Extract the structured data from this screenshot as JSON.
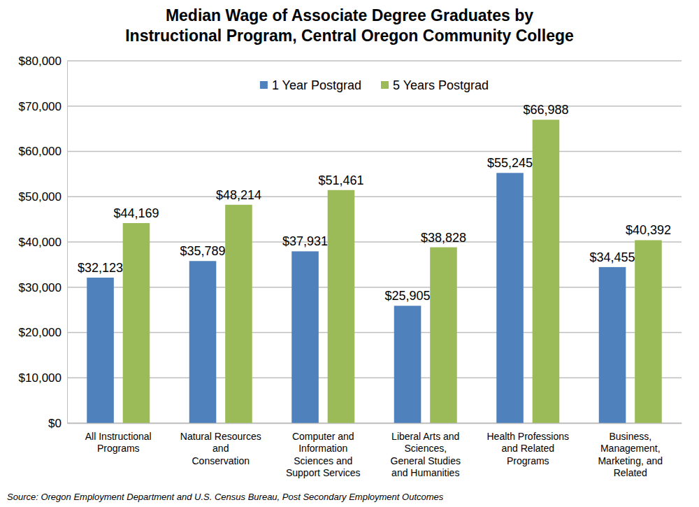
{
  "chart_data": {
    "type": "bar",
    "title": "Median Wage of Associate Degree Graduates by\nInstructional Program, Central Oregon Community College",
    "source": "Source: Oregon Employment Department and U.S. Census Bureau, Post Secondary Employment Outcomes",
    "categories": [
      "All Instructional\nPrograms",
      "Natural Resources\nand\nConservation",
      "Computer and\nInformation\nSciences and\nSupport Services",
      "Liberal Arts and\nSciences,\nGeneral Studies\nand Humanities",
      "Health Professions\nand Related\nPrograms",
      "Business,\nManagement,\nMarketing, and\nRelated"
    ],
    "series": [
      {
        "name": "1 Year Postgrad",
        "color": "#4f81bd",
        "values": [
          32123,
          35789,
          37931,
          25905,
          55245,
          34455
        ],
        "value_labels": [
          "$32,123",
          "$35,789",
          "$37,931",
          "$25,905",
          "$55,245",
          "$34,455"
        ]
      },
      {
        "name": "5 Years Postgrad",
        "color": "#9bbb59",
        "values": [
          44169,
          48214,
          51461,
          38828,
          66988,
          40392
        ],
        "value_labels": [
          "$44,169",
          "$48,214",
          "$51,461",
          "$38,828",
          "$66,988",
          "$40,392"
        ]
      }
    ],
    "ylim": [
      0,
      80000
    ],
    "yticks": [
      {
        "value": 0,
        "label": "$0"
      },
      {
        "value": 10000,
        "label": "$10,000"
      },
      {
        "value": 20000,
        "label": "$20,000"
      },
      {
        "value": 30000,
        "label": "$30,000"
      },
      {
        "value": 40000,
        "label": "$40,000"
      },
      {
        "value": 50000,
        "label": "$50,000"
      },
      {
        "value": 60000,
        "label": "$60,000"
      },
      {
        "value": 70000,
        "label": "$70,000"
      },
      {
        "value": 80000,
        "label": "$80,000"
      }
    ],
    "grid": true,
    "legend": "top",
    "data_labels": true
  }
}
